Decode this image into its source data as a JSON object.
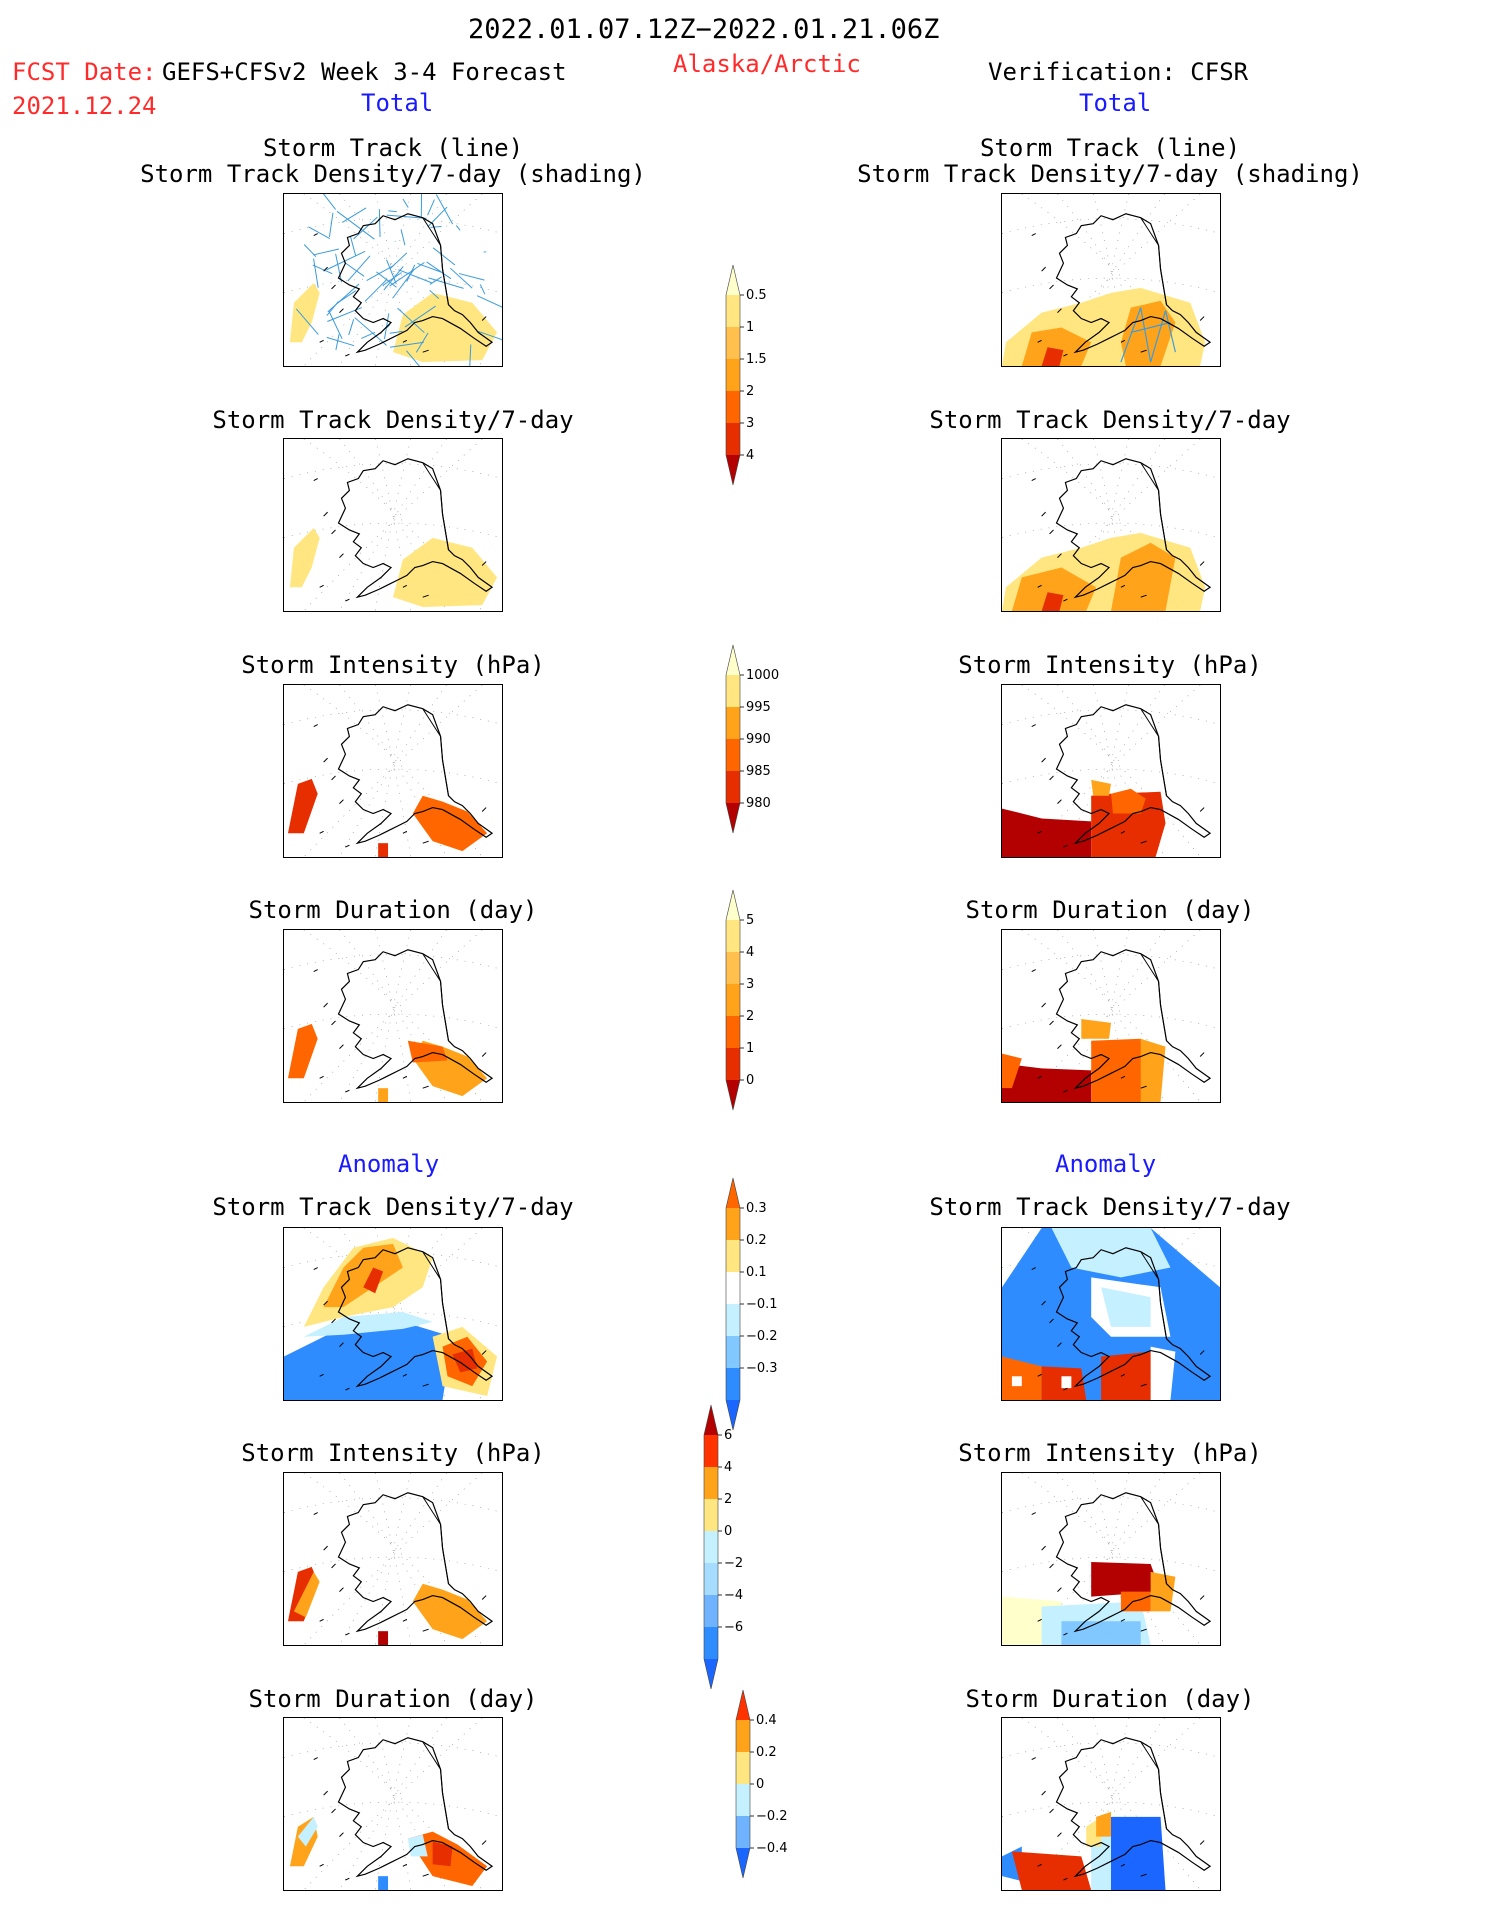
{
  "header": {
    "date_range": "2022.01.07.12Z−2022.01.21.06Z",
    "fcst_label": "FCST Date:",
    "fcst_model": "GEFS+CFSv2 Week 3-4 Forecast",
    "fcst_date": "2021.12.24",
    "region": "Alaska/Arctic",
    "verification": "Verification: CFSR",
    "total_label": "Total",
    "anomaly_label": "Anomaly"
  },
  "panel_titles": {
    "track_line": "Storm Track (line)",
    "track_shading": "Storm Track Density/7-day (shading)",
    "track_density": "Storm Track Density/7-day",
    "intensity": "Storm Intensity (hPa)",
    "duration": "Storm Duration (day)"
  },
  "chart_data": [
    {
      "type": "heatmap",
      "section": "Total",
      "column": "GEFS+CFSv2 Week 3-4 Forecast",
      "title": "Storm Track (line) / Storm Track Density/7-day (shading)",
      "colorbar_ticks": [
        "0.5",
        "1",
        "1.5",
        "2",
        "3",
        "4"
      ]
    },
    {
      "type": "heatmap",
      "section": "Total",
      "column": "Verification: CFSR",
      "title": "Storm Track (line) / Storm Track Density/7-day (shading)",
      "colorbar_ticks": [
        "0.5",
        "1",
        "1.5",
        "2",
        "3",
        "4"
      ]
    },
    {
      "type": "heatmap",
      "section": "Total",
      "column": "GEFS+CFSv2 Week 3-4 Forecast",
      "title": "Storm Track Density/7-day",
      "colorbar_ticks": [
        "0.5",
        "1",
        "1.5",
        "2",
        "3",
        "4"
      ]
    },
    {
      "type": "heatmap",
      "section": "Total",
      "column": "Verification: CFSR",
      "title": "Storm Track Density/7-day",
      "colorbar_ticks": [
        "0.5",
        "1",
        "1.5",
        "2",
        "3",
        "4"
      ]
    },
    {
      "type": "heatmap",
      "section": "Total",
      "column": "GEFS+CFSv2 Week 3-4 Forecast",
      "title": "Storm Intensity (hPa)",
      "colorbar_ticks": [
        "1000",
        "995",
        "990",
        "985",
        "980"
      ]
    },
    {
      "type": "heatmap",
      "section": "Total",
      "column": "Verification: CFSR",
      "title": "Storm Intensity (hPa)",
      "colorbar_ticks": [
        "1000",
        "995",
        "990",
        "985",
        "980"
      ]
    },
    {
      "type": "heatmap",
      "section": "Total",
      "column": "GEFS+CFSv2 Week 3-4 Forecast",
      "title": "Storm Duration (day)",
      "colorbar_ticks": [
        "5",
        "4",
        "3",
        "2",
        "1",
        "0"
      ]
    },
    {
      "type": "heatmap",
      "section": "Total",
      "column": "Verification: CFSR",
      "title": "Storm Duration (day)",
      "colorbar_ticks": [
        "5",
        "4",
        "3",
        "2",
        "1",
        "0"
      ]
    },
    {
      "type": "heatmap",
      "section": "Anomaly",
      "column": "GEFS+CFSv2 Week 3-4 Forecast",
      "title": "Storm Track Density/7-day",
      "colorbar_ticks": [
        "0.3",
        "0.2",
        "0.1",
        "−0.1",
        "−0.2",
        "−0.3"
      ]
    },
    {
      "type": "heatmap",
      "section": "Anomaly",
      "column": "Verification: CFSR",
      "title": "Storm Track Density/7-day",
      "colorbar_ticks": [
        "0.3",
        "0.2",
        "0.1",
        "−0.1",
        "−0.2",
        "−0.3"
      ]
    },
    {
      "type": "heatmap",
      "section": "Anomaly",
      "column": "GEFS+CFSv2 Week 3-4 Forecast",
      "title": "Storm Intensity (hPa)",
      "colorbar_ticks": [
        "6",
        "4",
        "2",
        "0",
        "−2",
        "−4",
        "−6"
      ]
    },
    {
      "type": "heatmap",
      "section": "Anomaly",
      "column": "Verification: CFSR",
      "title": "Storm Intensity (hPa)",
      "colorbar_ticks": [
        "6",
        "4",
        "2",
        "0",
        "−2",
        "−4",
        "−6"
      ]
    },
    {
      "type": "heatmap",
      "section": "Anomaly",
      "column": "GEFS+CFSv2 Week 3-4 Forecast",
      "title": "Storm Duration (day)",
      "colorbar_ticks": [
        "0.4",
        "0.2",
        "0",
        "−0.2",
        "−0.4"
      ]
    },
    {
      "type": "heatmap",
      "section": "Anomaly",
      "column": "Verification: CFSR",
      "title": "Storm Duration (day)",
      "colorbar_ticks": [
        "0.4",
        "0.2",
        "0",
        "−0.2",
        "−0.4"
      ]
    }
  ],
  "colorbars": [
    {
      "id": "density",
      "colors": [
        "#ffffcc",
        "#ffe680",
        "#ffc04d",
        "#ffa31a",
        "#ff6600",
        "#e62e00",
        "#b30000"
      ],
      "labels": [
        "0.5",
        "1",
        "1.5",
        "2",
        "3",
        "4"
      ],
      "ends": "both-up"
    },
    {
      "id": "intensity",
      "colors": [
        "#ffffcc",
        "#ffe680",
        "#ffa31a",
        "#ff6600",
        "#e62e00",
        "#b30000"
      ],
      "labels": [
        "1000",
        "995",
        "990",
        "985",
        "980"
      ],
      "ends": "down"
    },
    {
      "id": "duration",
      "colors": [
        "#ffffcc",
        "#ffe680",
        "#ffc04d",
        "#ffa31a",
        "#ff6600",
        "#e62e00",
        "#b30000"
      ],
      "labels": [
        "5",
        "4",
        "3",
        "2",
        "1",
        "0"
      ],
      "ends": "both-up"
    },
    {
      "id": "anom_density",
      "colors": [
        "#ff6600",
        "#ffa31a",
        "#ffe680",
        "#ffffff",
        "#c4f0ff",
        "#80c8ff",
        "#2e8cff",
        "#1a66ff"
      ],
      "labels": [
        "0.3",
        "0.2",
        "0.1",
        "−0.1",
        "−0.2",
        "−0.3"
      ],
      "ends": "both"
    },
    {
      "id": "anom_intensity",
      "colors": [
        "#b30000",
        "#ff3300",
        "#ffa31a",
        "#ffe680",
        "#c4f0ff",
        "#a6dcff",
        "#6fb3ff",
        "#2e8cff",
        "#1a66ff"
      ],
      "labels": [
        "6",
        "4",
        "2",
        "0",
        "−2",
        "−4",
        "−6"
      ],
      "ends": "both"
    },
    {
      "id": "anom_duration",
      "colors": [
        "#ff3300",
        "#ffa31a",
        "#ffe680",
        "#c4f0ff",
        "#6fb3ff",
        "#1a66ff"
      ],
      "labels": [
        "0.4",
        "0.2",
        "0",
        "−0.2",
        "−0.4"
      ],
      "ends": "both"
    }
  ],
  "colors": {
    "header_red": "#ff2a2a",
    "header_blue": "#1a1aff",
    "track_line": "#3a9bdc"
  }
}
